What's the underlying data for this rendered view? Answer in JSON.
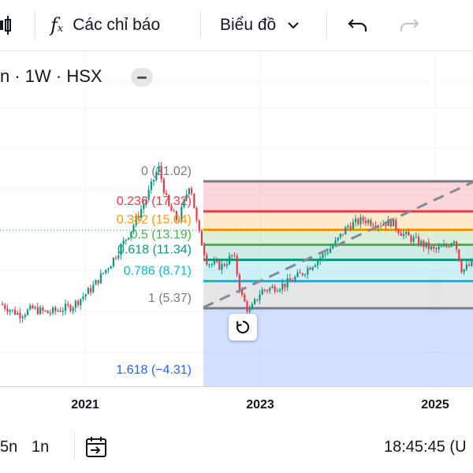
{
  "toolbar": {
    "indicators_label": "Các chỉ báo",
    "chart_type_label": "Biểu đồ"
  },
  "legend": {
    "symbol_text": "n · 1W · HSX"
  },
  "fib_levels": [
    {
      "label": "0 (21.02)",
      "ratio": 0,
      "price": 21.02,
      "color": "#787b86"
    },
    {
      "label": "0.236 (17.32)",
      "ratio": 0.236,
      "price": 17.32,
      "color": "#f23645"
    },
    {
      "label": "0.382 (15.04)",
      "ratio": 0.382,
      "price": 15.04,
      "color": "#ff9800"
    },
    {
      "label": "0.5 (13.19)",
      "ratio": 0.5,
      "price": 13.19,
      "color": "#4caf50"
    },
    {
      "label": "0.618 (11.34)",
      "ratio": 0.618,
      "price": 11.34,
      "color": "#089981"
    },
    {
      "label": "0.786 (8.71)",
      "ratio": 0.786,
      "price": 8.71,
      "color": "#00bcd4"
    },
    {
      "label": "1 (5.37)",
      "ratio": 1,
      "price": 5.37,
      "color": "#787b86"
    },
    {
      "label": "1.618 (−4.31)",
      "ratio": 1.618,
      "price": -4.31,
      "color": "#2962ff"
    }
  ],
  "xaxis": {
    "labels": [
      "2021",
      "2023",
      "2025"
    ]
  },
  "bottombar": {
    "range_5n": "5n",
    "range_1n": "1n",
    "clock": "18:45:45 (U"
  },
  "colors": {
    "up": "#089981",
    "down": "#f23645",
    "trendline": "#868993"
  },
  "icons": {
    "indicators": "fx-icon",
    "undo": "undo-icon",
    "redo": "redo-icon",
    "goto_date": "calendar-range-icon",
    "reset": "reset-icon"
  }
}
